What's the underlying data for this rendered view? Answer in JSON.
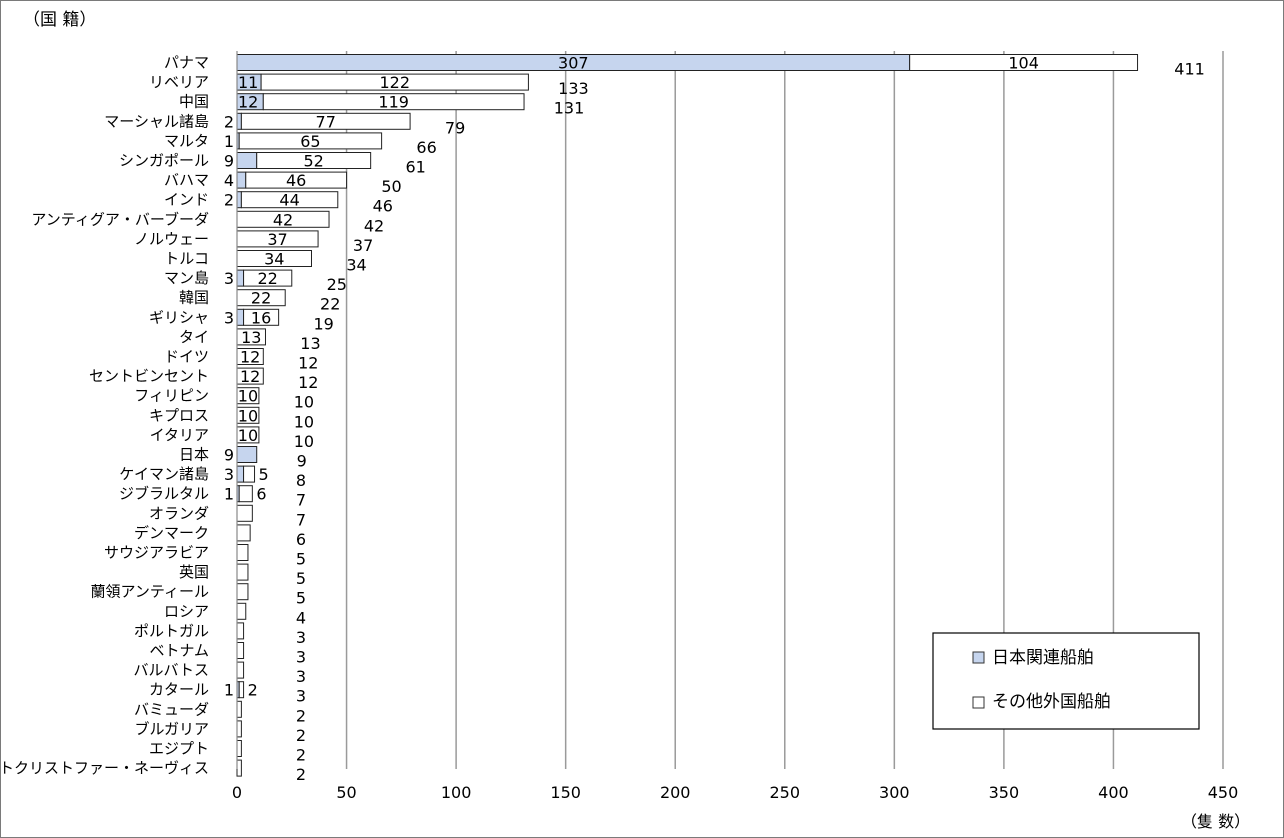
{
  "chart_data": {
    "type": "bar",
    "orientation": "horizontal",
    "stacked": true,
    "y_axis_title": "（国 籍）",
    "x_axis_unit": "（隻 数）",
    "xlim": [
      0,
      450
    ],
    "x_ticks": [
      0,
      50,
      100,
      150,
      200,
      250,
      300,
      350,
      400,
      450
    ],
    "grid": "vertical",
    "legend_position": "bottom-right",
    "categories": [
      "パナマ",
      "リベリア",
      "中国",
      "マーシャル諸島",
      "マルタ",
      "シンガポール",
      "バハマ",
      "インド",
      "アンティグア・バーブーダ",
      "ノルウェー",
      "トルコ",
      "マン島",
      "韓国",
      "ギリシャ",
      "タイ",
      "ドイツ",
      "セントビンセント",
      "フィリピン",
      "キプロス",
      "イタリア",
      "日本",
      "ケイマン諸島",
      "ジブラルタル",
      "オランダ",
      "デンマーク",
      "サウジアラビア",
      "英国",
      "蘭領アンティール",
      "ロシア",
      "ポルトガル",
      "ベトナム",
      "バルバトス",
      "カタール",
      "バミューダ",
      "ブルガリア",
      "エジプト",
      "セントクリストファー・ネーヴィス"
    ],
    "series": [
      {
        "name": "日本関連船舶",
        "color": "#c6d5ee",
        "values": [
          307,
          11,
          12,
          2,
          1,
          9,
          4,
          2,
          0,
          0,
          0,
          3,
          0,
          3,
          0,
          0,
          0,
          0,
          0,
          0,
          9,
          3,
          1,
          0,
          0,
          0,
          0,
          0,
          0,
          0,
          0,
          0,
          1,
          0,
          0,
          0,
          0
        ],
        "labels": [
          "307",
          "11",
          "12",
          "2",
          "1",
          "9",
          "4",
          "2",
          "",
          "",
          "",
          "3",
          "",
          "3",
          "",
          "",
          "",
          "",
          "",
          "",
          "9",
          "3",
          "1",
          "",
          "",
          "",
          "",
          "",
          "",
          "",
          "",
          "",
          "1",
          "",
          "",
          "",
          ""
        ]
      },
      {
        "name": "その他外国船舶",
        "color": "#ffffff",
        "values": [
          104,
          122,
          119,
          77,
          65,
          52,
          46,
          44,
          42,
          37,
          34,
          22,
          22,
          16,
          13,
          12,
          12,
          10,
          10,
          10,
          0,
          5,
          6,
          7,
          6,
          5,
          5,
          5,
          4,
          3,
          3,
          3,
          2,
          2,
          2,
          2,
          2
        ],
        "labels": [
          "104",
          "122",
          "119",
          "77",
          "65",
          "52",
          "46",
          "44",
          "42",
          "37",
          "34",
          "22",
          "22",
          "16",
          "13",
          "12",
          "12",
          "10",
          "10",
          "10",
          "",
          "5",
          "6",
          "",
          "",
          "",
          "",
          "",
          "",
          "",
          "",
          "",
          "2",
          "",
          "",
          "",
          ""
        ]
      }
    ],
    "totals": [
      411,
      133,
      131,
      79,
      66,
      61,
      50,
      46,
      42,
      37,
      34,
      25,
      22,
      19,
      13,
      12,
      12,
      10,
      10,
      10,
      9,
      8,
      7,
      7,
      6,
      5,
      5,
      5,
      4,
      3,
      3,
      3,
      3,
      2,
      2,
      2,
      2
    ]
  }
}
